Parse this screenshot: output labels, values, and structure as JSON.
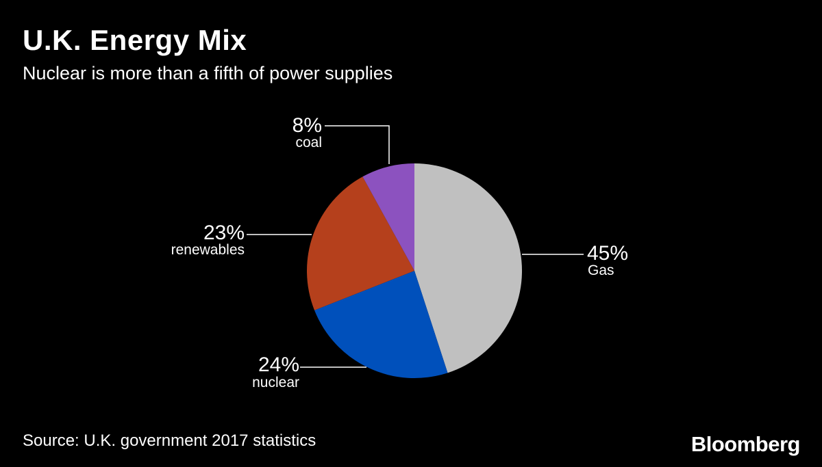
{
  "colors": {
    "background": "#000000",
    "text": "#ffffff",
    "leader": "#ffffff"
  },
  "chart_data": {
    "type": "pie",
    "title": "U.K. Energy Mix",
    "subtitle": "Nuclear is more than a fifth of power supplies",
    "unit": "%",
    "slices": [
      {
        "label": "Gas",
        "value": 45,
        "value_label": "45%",
        "color": "#c0c0c0"
      },
      {
        "label": "nuclear",
        "value": 24,
        "value_label": "24%",
        "color": "#0050bb"
      },
      {
        "label": "renewables",
        "value": 23,
        "value_label": "23%",
        "color": "#b5401c"
      },
      {
        "label": "coal",
        "value": 8,
        "value_label": "8%",
        "color": "#8c52bf"
      }
    ]
  },
  "footer": {
    "source": "Source: U.K. government 2017 statistics",
    "brand": "Bloomberg"
  }
}
